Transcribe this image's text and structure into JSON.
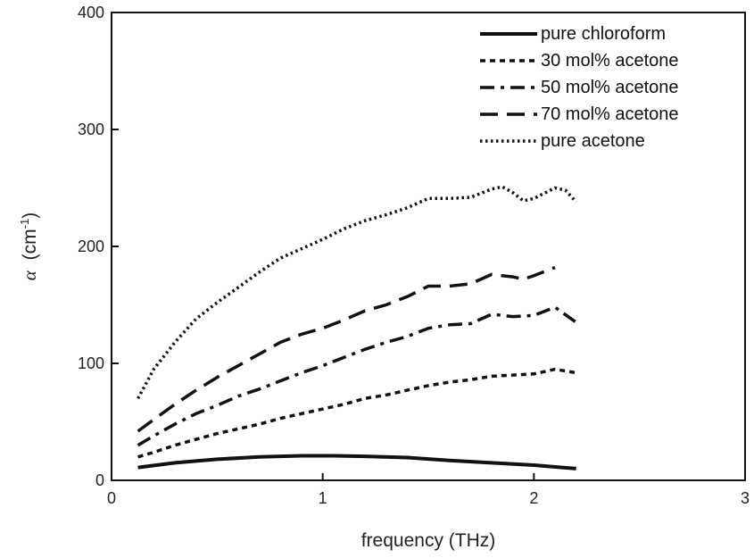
{
  "chart_data": {
    "type": "line",
    "title": "",
    "xlabel": "frequency (THz)",
    "ylabel": "α (cm⁻¹)",
    "ylabel_parts": {
      "symbol": "α",
      "unit_open": "(cm",
      "sup": "-1",
      "unit_close": ")"
    },
    "xlim": [
      0,
      3
    ],
    "ylim": [
      0,
      400
    ],
    "xticks": [
      "0",
      "1",
      "2",
      "3"
    ],
    "yticks": [
      "0",
      "100",
      "200",
      "300",
      "400"
    ],
    "grid": false,
    "legend_position": "top-right",
    "series": [
      {
        "name": "pure chloroform",
        "style": "solid",
        "x": [
          0.125,
          0.3,
          0.5,
          0.7,
          0.9,
          1.05,
          1.2,
          1.4,
          1.6,
          1.8,
          2.0,
          2.2
        ],
        "y": [
          11,
          15,
          18,
          20,
          21,
          21,
          20.5,
          19.5,
          17,
          15,
          13,
          10
        ]
      },
      {
        "name": "30 mol% acetone",
        "style": "short-dash",
        "x": [
          0.125,
          0.2,
          0.3,
          0.4,
          0.5,
          0.6,
          0.7,
          0.8,
          0.9,
          1.0,
          1.1,
          1.2,
          1.3,
          1.4,
          1.5,
          1.6,
          1.7,
          1.8,
          1.9,
          2.0,
          2.1,
          2.2
        ],
        "y": [
          20,
          24,
          30,
          35,
          40,
          44,
          48,
          53,
          57,
          61,
          65,
          70,
          73,
          77,
          81,
          84,
          86,
          89,
          90,
          91,
          95,
          92
        ]
      },
      {
        "name": "50 mol% acetone",
        "style": "dash-dot",
        "x": [
          0.125,
          0.2,
          0.3,
          0.4,
          0.5,
          0.6,
          0.7,
          0.8,
          0.9,
          1.0,
          1.1,
          1.2,
          1.3,
          1.4,
          1.5,
          1.6,
          1.7,
          1.8,
          1.9,
          2.0,
          2.1,
          2.2
        ],
        "y": [
          30,
          38,
          48,
          57,
          64,
          72,
          78,
          85,
          92,
          98,
          105,
          112,
          118,
          123,
          130,
          133,
          134,
          142,
          140,
          141,
          148,
          135
        ]
      },
      {
        "name": "70 mol% acetone",
        "style": "long-dash",
        "x": [
          0.125,
          0.2,
          0.3,
          0.4,
          0.5,
          0.6,
          0.7,
          0.8,
          0.9,
          1.0,
          1.1,
          1.2,
          1.3,
          1.4,
          1.5,
          1.6,
          1.7,
          1.8,
          1.9,
          1.95,
          2.0,
          2.1
        ],
        "y": [
          42,
          52,
          65,
          77,
          88,
          98,
          108,
          118,
          125,
          130,
          137,
          145,
          150,
          157,
          166,
          166,
          168,
          176,
          174,
          172,
          175,
          182
        ]
      },
      {
        "name": "pure acetone",
        "style": "dotted",
        "x": [
          0.125,
          0.2,
          0.3,
          0.4,
          0.5,
          0.6,
          0.7,
          0.8,
          0.9,
          1.0,
          1.1,
          1.2,
          1.3,
          1.4,
          1.5,
          1.6,
          1.7,
          1.8,
          1.85,
          1.9,
          1.95,
          2.0,
          2.1,
          2.15,
          2.2
        ],
        "y": [
          70,
          95,
          118,
          138,
          152,
          165,
          178,
          190,
          198,
          206,
          215,
          222,
          227,
          233,
          241,
          241,
          242,
          249,
          251,
          246,
          239,
          241,
          250,
          248,
          238
        ]
      }
    ]
  }
}
